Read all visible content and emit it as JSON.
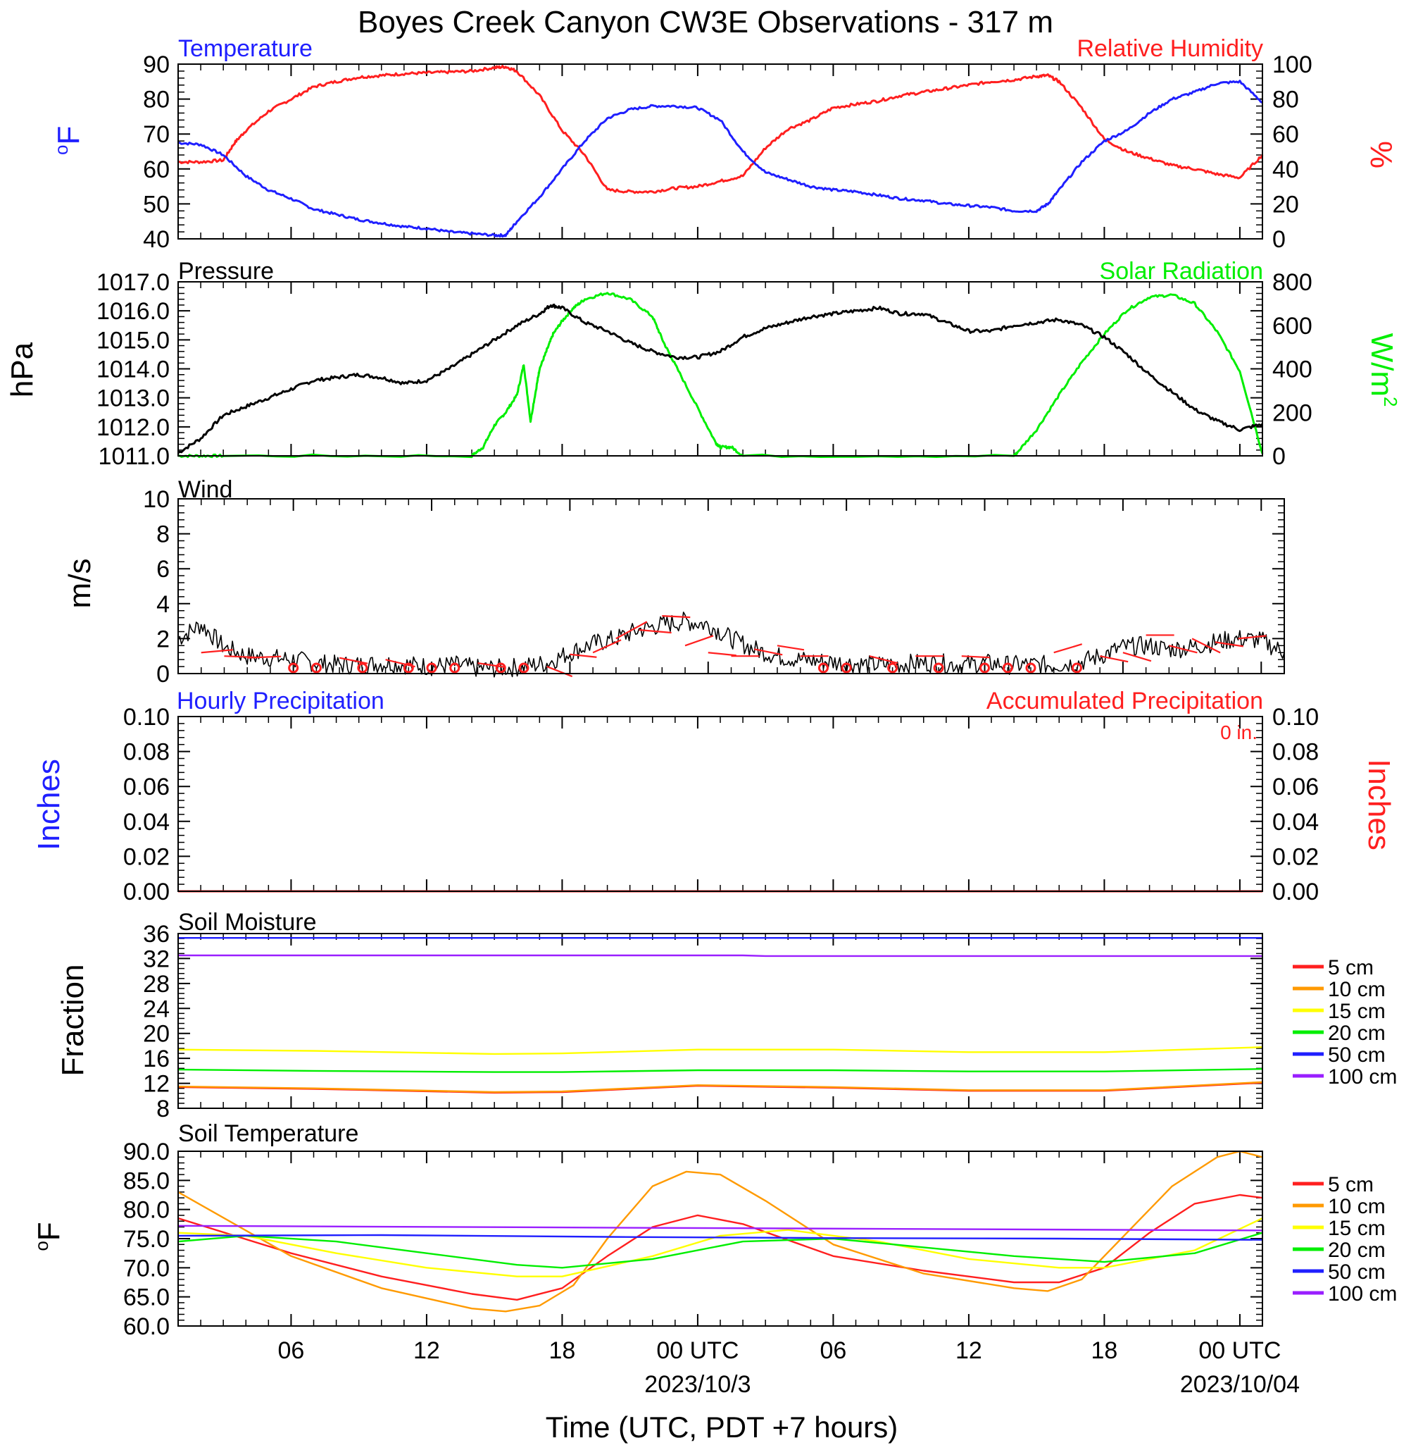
{
  "title": "Boyes Creek Canyon CW3E Observations - 317 m",
  "xaxis": {
    "label": "Time (UTC, PDT +7 hours)",
    "ticks": [
      {
        "t": 6,
        "label": "06"
      },
      {
        "t": 12,
        "label": "12"
      },
      {
        "t": 18,
        "label": "18"
      },
      {
        "t": 24,
        "label": "00 UTC",
        "date": "2023/10/3"
      },
      {
        "t": 30,
        "label": "06"
      },
      {
        "t": 36,
        "label": "12"
      },
      {
        "t": 42,
        "label": "18"
      },
      {
        "t": 48,
        "label": "00 UTC",
        "date": "2023/10/04"
      }
    ]
  },
  "colors": {
    "blue": "#1f1fff",
    "red": "#ff1f1f",
    "green": "#00ee00",
    "black": "#000000",
    "orange": "#ff9a00",
    "yellow": "#ffff00",
    "purple": "#9a1fff"
  },
  "panels": {
    "temp_rh": {
      "left_label": "Temperature",
      "right_label": "Relative Humidity",
      "left_unit": "oF",
      "right_unit": "%"
    },
    "pressure": {
      "left_label": "Pressure",
      "right_label": "Solar Radiation",
      "left_unit": "hPa",
      "right_unit": "W/m2"
    },
    "wind": {
      "left_label": "Wind",
      "left_unit": "m/s"
    },
    "precip": {
      "left_label": "Hourly Precipitation",
      "right_label": "Accumulated Precipitation",
      "left_unit": "Inches",
      "right_unit": "Inches",
      "accum_text": "0 in."
    },
    "soil_moisture": {
      "left_label": "Soil Moisture",
      "left_unit": "Fraction"
    },
    "soil_temp": {
      "left_label": "Soil Temperature",
      "left_unit": "oF"
    }
  },
  "soil_legend": [
    "5 cm",
    "10 cm",
    "15 cm",
    "20 cm",
    "50 cm",
    "100 cm"
  ],
  "chart_data": [
    {
      "type": "line",
      "title": "Temperature / Relative Humidity",
      "xlim": [
        1,
        49
      ],
      "left_axis": {
        "label": "oF",
        "ylim": [
          40,
          90
        ],
        "ticks": [
          40,
          50,
          60,
          70,
          80,
          90
        ]
      },
      "right_axis": {
        "label": "%",
        "ylim": [
          0,
          100
        ],
        "ticks": [
          0,
          20,
          40,
          60,
          80,
          100
        ]
      },
      "series": [
        {
          "name": "Temperature",
          "axis": "left",
          "color": "#1f1fff",
          "x": [
            1,
            2,
            3,
            4,
            5,
            6,
            7,
            8,
            9,
            10,
            11,
            12,
            13,
            14,
            15,
            15.5,
            16,
            17,
            18,
            19,
            20,
            21,
            22,
            23,
            24,
            25,
            26,
            27,
            28,
            29,
            30,
            31,
            32,
            33,
            34,
            35,
            36,
            37,
            38,
            39,
            39.5,
            40,
            41,
            42,
            43,
            44,
            45,
            46,
            47,
            48,
            49
          ],
          "y": [
            67.5,
            67,
            64,
            58,
            54,
            51.5,
            48.5,
            47,
            45.5,
            44.5,
            43.5,
            43,
            42,
            41.5,
            41,
            41,
            45,
            52,
            60,
            68,
            74.5,
            77,
            78,
            78,
            77.5,
            74,
            65,
            59,
            57,
            55,
            54,
            53.5,
            52.5,
            51.5,
            51,
            50,
            49.5,
            49,
            48,
            48,
            50,
            54,
            62,
            68,
            71,
            76,
            80,
            82,
            84.5,
            85,
            79
          ]
        },
        {
          "name": "Relative Humidity",
          "axis": "right",
          "color": "#ff1f1f",
          "x": [
            1,
            2,
            3,
            3.5,
            4,
            5,
            6,
            7,
            8,
            9,
            10,
            11,
            12,
            13,
            14,
            15,
            15.5,
            16,
            17,
            18,
            19,
            20,
            21,
            22,
            23,
            24,
            25,
            26,
            27,
            28,
            29,
            30,
            31,
            32,
            33,
            34,
            35,
            36,
            37,
            38,
            39,
            39.5,
            40,
            41,
            42,
            43,
            44,
            45,
            46,
            47,
            48,
            49
          ],
          "y": [
            44,
            44,
            45,
            55,
            62,
            73,
            80,
            87,
            90,
            92.5,
            93.5,
            94.5,
            95,
            95.5,
            96,
            98,
            98.5,
            96,
            82,
            62,
            48,
            28,
            27,
            27,
            29,
            30,
            33,
            36,
            52,
            63,
            68,
            75,
            77,
            79,
            82,
            84,
            86,
            88,
            90,
            91,
            93,
            93.5,
            90,
            75,
            57,
            50,
            46,
            42,
            40,
            37,
            35,
            48
          ]
        }
      ]
    },
    {
      "type": "line",
      "title": "Pressure / Solar Radiation",
      "xlim": [
        1,
        49
      ],
      "left_axis": {
        "label": "hPa",
        "ylim": [
          1011,
          1017
        ],
        "ticks": [
          1011,
          1012,
          1013,
          1014,
          1015,
          1016,
          1017
        ]
      },
      "right_axis": {
        "label": "W/m2",
        "ylim": [
          0,
          800
        ],
        "ticks": [
          0,
          200,
          400,
          600,
          800
        ]
      },
      "series": [
        {
          "name": "Pressure",
          "axis": "left",
          "color": "#000000",
          "x": [
            1,
            2,
            3,
            4,
            5,
            6,
            7,
            8,
            9,
            10,
            11,
            12,
            13,
            14,
            15,
            16,
            17,
            17.5,
            18,
            19,
            20,
            21,
            22,
            23,
            24,
            25,
            26,
            27,
            28,
            29,
            30,
            31,
            32,
            33,
            34,
            35,
            36,
            37,
            38,
            39,
            40,
            41,
            42,
            43,
            44,
            45,
            46,
            47,
            48,
            49
          ],
          "y": [
            1011.1,
            1011.6,
            1012.4,
            1012.7,
            1013.0,
            1013.3,
            1013.6,
            1013.7,
            1013.8,
            1013.7,
            1013.5,
            1013.6,
            1014.0,
            1014.5,
            1015.0,
            1015.5,
            1015.9,
            1016.2,
            1016.1,
            1015.6,
            1015.3,
            1014.9,
            1014.6,
            1014.4,
            1014.4,
            1014.6,
            1015.1,
            1015.4,
            1015.6,
            1015.8,
            1015.9,
            1016.0,
            1016.1,
            1015.9,
            1015.9,
            1015.6,
            1015.3,
            1015.3,
            1015.5,
            1015.6,
            1015.7,
            1015.5,
            1015.1,
            1014.5,
            1013.8,
            1013.2,
            1012.6,
            1012.2,
            1011.9,
            1012.1
          ]
        },
        {
          "name": "Solar Radiation",
          "axis": "right",
          "color": "#00ee00",
          "x": [
            1,
            2,
            3,
            14,
            14.5,
            15,
            15.5,
            16,
            16.3,
            16.6,
            16.9,
            17,
            17.3,
            17.6,
            18,
            18.5,
            19,
            20,
            21,
            22,
            22.5,
            23,
            24,
            24.8,
            25,
            25.5,
            26,
            38,
            38.1,
            39,
            40,
            41,
            42,
            43,
            44,
            45,
            46,
            47,
            48,
            49
          ],
          "y": [
            0,
            0,
            0,
            0,
            40,
            140,
            200,
            280,
            420,
            160,
            340,
            400,
            480,
            560,
            620,
            680,
            720,
            750,
            720,
            640,
            520,
            420,
            220,
            60,
            40,
            40,
            0,
            0,
            10,
            120,
            280,
            430,
            560,
            670,
            730,
            740,
            700,
            570,
            390,
            10
          ]
        }
      ]
    },
    {
      "type": "line",
      "title": "Wind",
      "xlim": [
        1,
        49
      ],
      "left_axis": {
        "label": "m/s",
        "ylim": [
          0,
          10
        ],
        "ticks": [
          0,
          2,
          4,
          6,
          8,
          10
        ]
      },
      "series": [
        {
          "name": "Wind",
          "color": "#000000",
          "x": [
            1,
            2,
            3,
            4,
            5,
            6,
            7,
            8,
            9,
            10,
            11,
            12,
            13,
            14,
            15,
            16,
            17,
            18,
            19,
            20,
            21,
            22,
            23,
            24,
            25,
            26,
            27,
            28,
            29,
            30,
            31,
            32,
            33,
            34,
            35,
            36,
            37,
            38,
            39,
            40,
            41,
            42,
            43,
            44,
            45,
            46,
            47,
            48,
            49
          ],
          "y": [
            2.0,
            2.8,
            1.5,
            1.0,
            0.9,
            0.8,
            0.6,
            0.5,
            0.5,
            0.6,
            0.5,
            0.4,
            0.5,
            0.3,
            0.3,
            0.4,
            0.6,
            1.2,
            1.7,
            2.0,
            2.5,
            2.8,
            3.0,
            2.8,
            2.0,
            1.4,
            1.0,
            0.8,
            0.7,
            0.6,
            0.5,
            0.5,
            0.6,
            0.6,
            0.5,
            0.6,
            0.5,
            0.5,
            0.5,
            0.6,
            1.0,
            1.5,
            1.6,
            1.4,
            1.5,
            1.8,
            2.0,
            1.9,
            1.2
          ]
        }
      ]
    },
    {
      "type": "line",
      "title": "Hourly Precipitation / Accumulated Precipitation",
      "xlim": [
        1,
        49
      ],
      "left_axis": {
        "label": "Inches",
        "ylim": [
          0,
          0.1
        ],
        "ticks": [
          0,
          0.02,
          0.04,
          0.06,
          0.08,
          0.1
        ]
      },
      "right_axis": {
        "label": "Inches",
        "ylim": [
          0,
          0.1
        ],
        "ticks": [
          0,
          0.02,
          0.04,
          0.06,
          0.08,
          0.1
        ]
      },
      "series": [
        {
          "name": "Hourly Precipitation",
          "color": "#1f1fff",
          "x": [
            1,
            49
          ],
          "y": [
            0,
            0
          ]
        },
        {
          "name": "Accumulated Precipitation",
          "color": "#ff1f1f",
          "x": [
            1,
            49
          ],
          "y": [
            0,
            0
          ]
        }
      ],
      "annotations": [
        "0 in."
      ]
    },
    {
      "type": "line",
      "title": "Soil Moisture",
      "xlim": [
        1,
        49
      ],
      "left_axis": {
        "label": "Fraction",
        "ylim": [
          8,
          36
        ],
        "ticks": [
          8,
          12,
          16,
          20,
          24,
          28,
          32,
          36
        ]
      },
      "series": [
        {
          "name": "5 cm",
          "color": "#ff1f1f",
          "x": [
            1,
            7,
            15,
            18,
            24,
            30,
            36,
            42,
            49
          ],
          "y": [
            11.4,
            11.1,
            10.5,
            10.6,
            11.6,
            11.3,
            10.8,
            10.8,
            12.1
          ]
        },
        {
          "name": "10 cm",
          "color": "#ff9a00",
          "x": [
            1,
            7,
            15,
            18,
            24,
            30,
            36,
            42,
            49
          ],
          "y": [
            11.5,
            11.2,
            10.6,
            10.7,
            11.7,
            11.4,
            10.9,
            10.9,
            12.2
          ]
        },
        {
          "name": "15 cm",
          "color": "#ffff00",
          "x": [
            1,
            7,
            15,
            18,
            24,
            30,
            36,
            42,
            49
          ],
          "y": [
            17.4,
            17.2,
            16.7,
            16.8,
            17.4,
            17.4,
            17.0,
            17.0,
            17.8
          ]
        },
        {
          "name": "20 cm",
          "color": "#00ee00",
          "x": [
            1,
            7,
            15,
            18,
            24,
            30,
            36,
            42,
            49
          ],
          "y": [
            14.2,
            14.0,
            13.8,
            13.8,
            14.1,
            14.1,
            13.9,
            13.9,
            14.3
          ]
        },
        {
          "name": "50 cm",
          "color": "#1f1fff",
          "x": [
            1,
            49
          ],
          "y": [
            35.3,
            35.3
          ]
        },
        {
          "name": "100 cm",
          "color": "#9a1fff",
          "x": [
            1,
            26,
            27,
            49
          ],
          "y": [
            32.5,
            32.5,
            32.4,
            32.4
          ]
        }
      ]
    },
    {
      "type": "line",
      "title": "Soil Temperature",
      "xlim": [
        1,
        49
      ],
      "left_axis": {
        "label": "oF",
        "ylim": [
          60,
          90
        ],
        "ticks": [
          60,
          65,
          70,
          75,
          80,
          85,
          90
        ]
      },
      "series": [
        {
          "name": "5 cm",
          "color": "#ff1f1f",
          "x": [
            1,
            6,
            10,
            14,
            16,
            18,
            20,
            22,
            24,
            26,
            30,
            34,
            38,
            40,
            42,
            44,
            46,
            48,
            49
          ],
          "y": [
            78.5,
            72.5,
            68.5,
            65.5,
            64.5,
            66.5,
            72,
            77,
            79,
            77.5,
            72,
            69.5,
            67.5,
            67.5,
            70,
            76,
            81,
            82.5,
            82
          ]
        },
        {
          "name": "10 cm",
          "color": "#ff9a00",
          "x": [
            1,
            6,
            10,
            14,
            15.5,
            17,
            18.5,
            20,
            22,
            23.5,
            25,
            27,
            30,
            34,
            38,
            39.5,
            41,
            43,
            45,
            47,
            48,
            49
          ],
          "y": [
            83,
            72,
            66.5,
            63,
            62.5,
            63.5,
            67,
            75,
            84,
            86.5,
            86,
            81.5,
            74,
            69,
            66.5,
            66,
            68,
            76,
            84,
            89,
            90,
            89
          ]
        },
        {
          "name": "15 cm",
          "color": "#ffff00",
          "x": [
            1,
            4,
            8,
            12,
            16,
            18,
            22,
            25,
            28,
            32,
            36,
            40,
            42,
            46,
            49
          ],
          "y": [
            76,
            75.5,
            72.5,
            70,
            68.5,
            68.5,
            72,
            75.5,
            76.5,
            74.5,
            71.5,
            70,
            70,
            73,
            78.5
          ]
        },
        {
          "name": "20 cm",
          "color": "#00ee00",
          "x": [
            1,
            4,
            8,
            12,
            16,
            18,
            22,
            26,
            30,
            34,
            38,
            42,
            46,
            49
          ],
          "y": [
            74.5,
            75.5,
            74.5,
            72.5,
            70.5,
            70,
            71.5,
            74.5,
            75,
            73.5,
            72,
            71,
            72.5,
            76
          ]
        },
        {
          "name": "50 cm",
          "color": "#1f1fff",
          "x": [
            1,
            10,
            20,
            30,
            40,
            49
          ],
          "y": [
            75.5,
            75.6,
            75.3,
            75.1,
            75.0,
            74.8
          ]
        },
        {
          "name": "100 cm",
          "color": "#9a1fff",
          "x": [
            1,
            49
          ],
          "y": [
            77.2,
            76.4
          ]
        }
      ]
    }
  ]
}
